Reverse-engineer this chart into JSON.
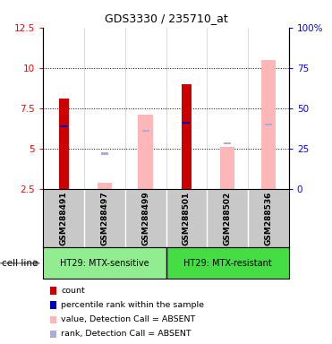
{
  "title": "GDS3330 / 235710_at",
  "samples": [
    "GSM288491",
    "GSM288497",
    "GSM288499",
    "GSM288501",
    "GSM288502",
    "GSM288536"
  ],
  "left_ylim": [
    2.5,
    12.5
  ],
  "left_yticks": [
    2.5,
    5.0,
    7.5,
    10.0,
    12.5
  ],
  "left_yticklabels": [
    "2.5",
    "5",
    "7.5",
    "10",
    "12.5"
  ],
  "right_ylim": [
    0,
    100
  ],
  "right_yticks": [
    0,
    25,
    50,
    75,
    100
  ],
  "right_yticklabels": [
    "0",
    "25",
    "50",
    "75",
    "100%"
  ],
  "red_bars": [
    8.1,
    null,
    null,
    9.0,
    null,
    null
  ],
  "blue_markers": [
    6.4,
    null,
    null,
    6.6,
    null,
    null
  ],
  "pink_bars": [
    null,
    2.9,
    7.1,
    null,
    5.1,
    10.5
  ],
  "lightblue_markers": [
    null,
    4.7,
    6.1,
    null,
    5.35,
    6.5
  ],
  "red_color": "#CC0000",
  "blue_color": "#0000BB",
  "pink_color": "#FFB6B6",
  "lightblue_color": "#AAAADD",
  "group1_color": "#90EE90",
  "group2_color": "#44DD44",
  "label_bg": "#C8C8C8",
  "group1_label": "HT29: MTX-sensitive",
  "group2_label": "HT29: MTX-resistant",
  "cellline_label": "cell line",
  "legend_items": [
    {
      "label": "count",
      "color": "#CC0000"
    },
    {
      "label": "percentile rank within the sample",
      "color": "#0000BB"
    },
    {
      "label": "value, Detection Call = ABSENT",
      "color": "#FFB6B6"
    },
    {
      "label": "rank, Detection Call = ABSENT",
      "color": "#AAAADD"
    }
  ]
}
